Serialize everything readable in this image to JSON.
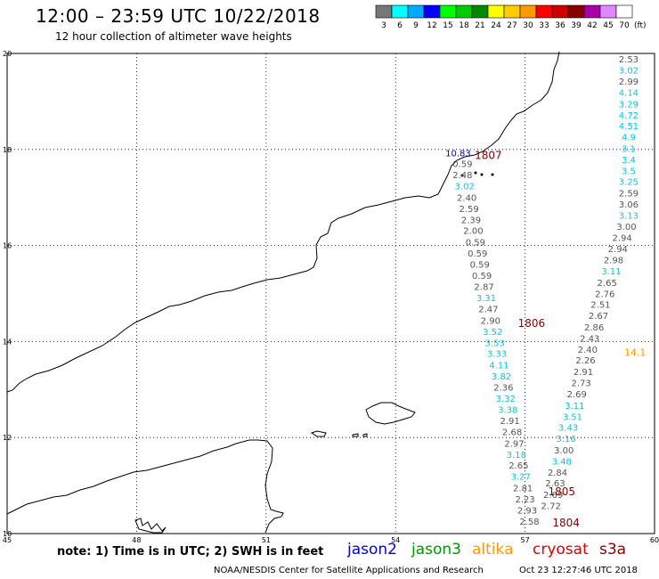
{
  "header": {
    "title": "12:00 – 23:59 UTC 10/22/2018",
    "subtitle": "12 hour collection of altimeter wave heights"
  },
  "legend": {
    "unit": "(ft)",
    "entries": [
      {
        "label": "3",
        "color": "#777777"
      },
      {
        "label": "6",
        "color": "#00ffff"
      },
      {
        "label": "9",
        "color": "#00aaff"
      },
      {
        "label": "12",
        "color": "#0000ff"
      },
      {
        "label": "15",
        "color": "#00ff00"
      },
      {
        "label": "18",
        "color": "#00cc00"
      },
      {
        "label": "21",
        "color": "#008800"
      },
      {
        "label": "24",
        "color": "#ffff00"
      },
      {
        "label": "27",
        "color": "#ffcc00"
      },
      {
        "label": "30",
        "color": "#ff9900"
      },
      {
        "label": "33",
        "color": "#ff0000"
      },
      {
        "label": "36",
        "color": "#cc0000"
      },
      {
        "label": "39",
        "color": "#880000"
      },
      {
        "label": "42",
        "color": "#aa00aa"
      },
      {
        "label": "45",
        "color": "#dd88ff"
      },
      {
        "label": "70",
        "color": "#ffffff"
      }
    ]
  },
  "axes": {
    "x_ticks": [
      "45",
      "48",
      "51",
      "54",
      "57",
      "60"
    ],
    "y_ticks": [
      "10",
      "12",
      "14",
      "16",
      "18",
      "20"
    ],
    "lon_range": [
      45,
      60
    ],
    "lat_range": [
      10,
      20
    ]
  },
  "colors": {
    "jason2": "#0000dd",
    "jason3": "#009900",
    "altika": "#ff9900",
    "cryosat": "#dd0000",
    "s3a": "#880000",
    "gray_value": "#555555",
    "cyan_value": "#00c8e6",
    "time_label": "#880000"
  },
  "tracks": [
    {
      "id": "track-a",
      "points": [
        {
          "lon": 55.45,
          "lat": 17.86,
          "label": "10.83",
          "cls": "jason2"
        },
        {
          "lon": 55.55,
          "lat": 17.63,
          "label": "0.59",
          "cls": "gray"
        },
        {
          "lon": 55.55,
          "lat": 17.4,
          "label": "2.48",
          "cls": "gray"
        },
        {
          "lon": 55.6,
          "lat": 17.17,
          "label": "3.02",
          "cls": "cyan"
        },
        {
          "lon": 55.65,
          "lat": 16.93,
          "label": "2.40",
          "cls": "gray"
        },
        {
          "lon": 55.7,
          "lat": 16.7,
          "label": "2.59",
          "cls": "gray"
        },
        {
          "lon": 55.75,
          "lat": 16.47,
          "label": "2.39",
          "cls": "gray"
        },
        {
          "lon": 55.8,
          "lat": 16.24,
          "label": "2.00",
          "cls": "gray"
        },
        {
          "lon": 55.85,
          "lat": 16.0,
          "label": "0.59",
          "cls": "gray"
        },
        {
          "lon": 55.9,
          "lat": 15.77,
          "label": "0.59",
          "cls": "gray"
        },
        {
          "lon": 55.95,
          "lat": 15.54,
          "label": "0.59",
          "cls": "gray"
        },
        {
          "lon": 56.0,
          "lat": 15.31,
          "label": "0.59",
          "cls": "gray"
        },
        {
          "lon": 56.05,
          "lat": 15.07,
          "label": "2.87",
          "cls": "gray"
        },
        {
          "lon": 56.1,
          "lat": 14.84,
          "label": "3.31",
          "cls": "cyan"
        },
        {
          "lon": 56.15,
          "lat": 14.61,
          "label": "2.47",
          "cls": "gray"
        },
        {
          "lon": 56.2,
          "lat": 14.37,
          "label": "2.90",
          "cls": "gray"
        },
        {
          "lon": 56.25,
          "lat": 14.14,
          "label": "3.52",
          "cls": "cyan"
        },
        {
          "lon": 56.3,
          "lat": 13.91,
          "label": "3.53",
          "cls": "cyan"
        },
        {
          "lon": 56.35,
          "lat": 13.68,
          "label": "3.33",
          "cls": "cyan"
        },
        {
          "lon": 56.4,
          "lat": 13.44,
          "label": "4.11",
          "cls": "cyan"
        },
        {
          "lon": 56.45,
          "lat": 13.21,
          "label": "3.82",
          "cls": "cyan"
        },
        {
          "lon": 56.5,
          "lat": 12.98,
          "label": "2.36",
          "cls": "gray"
        },
        {
          "lon": 56.55,
          "lat": 12.75,
          "label": "3.32",
          "cls": "cyan"
        },
        {
          "lon": 56.6,
          "lat": 12.51,
          "label": "3.38",
          "cls": "cyan"
        },
        {
          "lon": 56.65,
          "lat": 12.28,
          "label": "2.91",
          "cls": "gray"
        },
        {
          "lon": 56.7,
          "lat": 12.05,
          "label": "2.68",
          "cls": "gray"
        },
        {
          "lon": 56.75,
          "lat": 11.81,
          "label": "2.97",
          "cls": "gray"
        },
        {
          "lon": 56.8,
          "lat": 11.58,
          "label": "3.18",
          "cls": "cyan"
        },
        {
          "lon": 56.85,
          "lat": 11.35,
          "label": "2.65",
          "cls": "gray"
        },
        {
          "lon": 56.9,
          "lat": 11.12,
          "label": "3.27",
          "cls": "cyan"
        },
        {
          "lon": 56.95,
          "lat": 10.88,
          "label": "2.81",
          "cls": "gray"
        },
        {
          "lon": 57.0,
          "lat": 10.65,
          "label": "2.23",
          "cls": "gray"
        },
        {
          "lon": 57.05,
          "lat": 10.42,
          "label": "2.93",
          "cls": "gray"
        },
        {
          "lon": 57.1,
          "lat": 10.19,
          "label": "2.58",
          "cls": "gray"
        }
      ]
    },
    {
      "id": "track-b",
      "points": [
        {
          "lon": 59.4,
          "lat": 19.81,
          "label": "2.53",
          "cls": "gray"
        },
        {
          "lon": 59.4,
          "lat": 19.58,
          "label": "3.02",
          "cls": "cyan"
        },
        {
          "lon": 59.4,
          "lat": 19.35,
          "label": "2.99",
          "cls": "gray"
        },
        {
          "lon": 59.4,
          "lat": 19.12,
          "label": "4.14",
          "cls": "cyan"
        },
        {
          "lon": 59.4,
          "lat": 18.88,
          "label": "3.29",
          "cls": "cyan"
        },
        {
          "lon": 59.4,
          "lat": 18.65,
          "label": "4.72",
          "cls": "cyan"
        },
        {
          "lon": 59.4,
          "lat": 18.42,
          "label": "4.51",
          "cls": "cyan"
        },
        {
          "lon": 59.4,
          "lat": 18.19,
          "label": "4.9",
          "cls": "cyan"
        },
        {
          "lon": 59.4,
          "lat": 17.95,
          "label": "3.1",
          "cls": "cyan"
        },
        {
          "lon": 59.4,
          "lat": 17.72,
          "label": "3.4",
          "cls": "cyan"
        },
        {
          "lon": 59.4,
          "lat": 17.49,
          "label": "3.5",
          "cls": "cyan"
        },
        {
          "lon": 59.4,
          "lat": 17.26,
          "label": "3.25",
          "cls": "cyan"
        },
        {
          "lon": 59.4,
          "lat": 17.02,
          "label": "2.59",
          "cls": "gray"
        },
        {
          "lon": 59.4,
          "lat": 16.79,
          "label": "3.06",
          "cls": "gray"
        },
        {
          "lon": 59.4,
          "lat": 16.56,
          "label": "3.13",
          "cls": "cyan"
        },
        {
          "lon": 59.35,
          "lat": 16.33,
          "label": "3.00",
          "cls": "gray"
        },
        {
          "lon": 59.25,
          "lat": 16.09,
          "label": "2.94",
          "cls": "gray"
        },
        {
          "lon": 59.15,
          "lat": 15.86,
          "label": "2.94",
          "cls": "gray"
        },
        {
          "lon": 59.05,
          "lat": 15.63,
          "label": "2.98",
          "cls": "gray"
        },
        {
          "lon": 59.0,
          "lat": 15.4,
          "label": "3.11",
          "cls": "cyan"
        },
        {
          "lon": 58.9,
          "lat": 15.16,
          "label": "2.65",
          "cls": "gray"
        },
        {
          "lon": 58.85,
          "lat": 14.93,
          "label": "2.76",
          "cls": "gray"
        },
        {
          "lon": 58.75,
          "lat": 14.7,
          "label": "2.51",
          "cls": "gray"
        },
        {
          "lon": 58.7,
          "lat": 14.47,
          "label": "2.67",
          "cls": "gray"
        },
        {
          "lon": 58.6,
          "lat": 14.23,
          "label": "2.86",
          "cls": "gray"
        },
        {
          "lon": 58.5,
          "lat": 14.0,
          "label": "2.43",
          "cls": "gray"
        },
        {
          "lon": 58.45,
          "lat": 13.77,
          "label": "2.40",
          "cls": "gray"
        },
        {
          "lon": 58.4,
          "lat": 13.54,
          "label": "2.26",
          "cls": "gray"
        },
        {
          "lon": 58.35,
          "lat": 13.3,
          "label": "2.91",
          "cls": "gray"
        },
        {
          "lon": 58.3,
          "lat": 13.07,
          "label": "2.73",
          "cls": "gray"
        },
        {
          "lon": 58.2,
          "lat": 12.84,
          "label": "2.69",
          "cls": "gray"
        },
        {
          "lon": 58.15,
          "lat": 12.6,
          "label": "3.11",
          "cls": "cyan"
        },
        {
          "lon": 58.1,
          "lat": 12.37,
          "label": "3.51",
          "cls": "cyan"
        },
        {
          "lon": 58.0,
          "lat": 12.14,
          "label": "3.43",
          "cls": "cyan"
        },
        {
          "lon": 57.95,
          "lat": 11.91,
          "label": "3.16",
          "cls": "cyan"
        },
        {
          "lon": 57.9,
          "lat": 11.67,
          "label": "3.00",
          "cls": "gray"
        },
        {
          "lon": 57.85,
          "lat": 11.44,
          "label": "3.48",
          "cls": "cyan"
        },
        {
          "lon": 57.75,
          "lat": 11.21,
          "label": "2.84",
          "cls": "gray"
        },
        {
          "lon": 57.7,
          "lat": 10.98,
          "label": "2.63",
          "cls": "gray"
        },
        {
          "lon": 57.65,
          "lat": 10.74,
          "label": "2.69",
          "cls": "gray"
        },
        {
          "lon": 57.6,
          "lat": 10.51,
          "label": "2.72",
          "cls": "gray"
        }
      ]
    }
  ],
  "extra_values": [
    {
      "lon": 59.55,
      "lat": 13.7,
      "label": "14.1",
      "cls": "altika"
    }
  ],
  "time_labels": [
    {
      "lon": 56.15,
      "lat": 17.8,
      "label": "1807"
    },
    {
      "lon": 57.15,
      "lat": 14.3,
      "label": "1806"
    },
    {
      "lon": 57.85,
      "lat": 10.8,
      "label": "1805"
    },
    {
      "lon": 57.95,
      "lat": 10.15,
      "label": "1804"
    }
  ],
  "footer": {
    "note": "note:  1) Time is in UTC;  2) SWH is in feet",
    "satellites": [
      {
        "name": "jason2",
        "color": "#0000dd"
      },
      {
        "name": "jason3",
        "color": "#009900"
      },
      {
        "name": "altika",
        "color": "#ff9900"
      },
      {
        "name": "cryosat",
        "color": "#dd0000"
      },
      {
        "name": "s3a",
        "color": "#880000"
      }
    ],
    "credit": "NOAA/NESDIS Center for Satellite Applications and Research",
    "timestamp": "Oct 23 12:27:46 UTC 2018"
  }
}
